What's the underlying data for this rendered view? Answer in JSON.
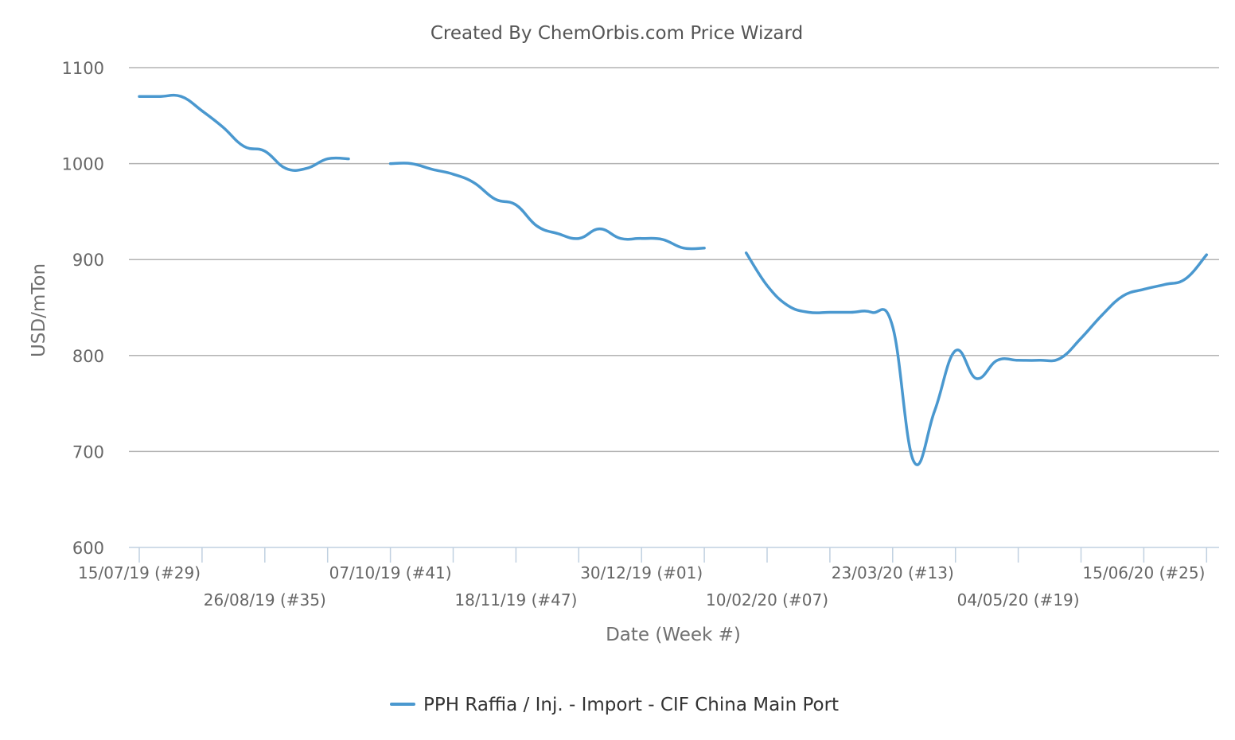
{
  "chart_data": {
    "type": "line",
    "title": "Created By ChemOrbis.com Price Wizard",
    "xlabel": "Date (Week #)",
    "ylabel": "USD/mTon",
    "ylim": [
      600,
      1100
    ],
    "yticks": [
      600,
      700,
      800,
      900,
      1000,
      1100
    ],
    "grid": true,
    "legend_position": "bottom-center",
    "x_start_week": "15/07/19 (#29)",
    "x_ticks_labeled": [
      {
        "week": 0,
        "label": "15/07/19 (#29)"
      },
      {
        "week": 6,
        "label": "26/08/19 (#35)"
      },
      {
        "week": 12,
        "label": "07/10/19 (#41)"
      },
      {
        "week": 18,
        "label": "18/11/19 (#47)"
      },
      {
        "week": 24,
        "label": "30/12/19 (#01)"
      },
      {
        "week": 30,
        "label": "10/02/20 (#07)"
      },
      {
        "week": 36,
        "label": "23/03/20 (#13)"
      },
      {
        "week": 42,
        "label": "04/05/20 (#19)"
      },
      {
        "week": 48,
        "label": "15/06/20 (#25)"
      }
    ],
    "x_tick_weeks": [
      0,
      3,
      6,
      9,
      12,
      15,
      18,
      21,
      24,
      27,
      30,
      33,
      36,
      39,
      42,
      45,
      48,
      51
    ],
    "series": [
      {
        "name": "PPH Raffia / Inj. - Import - CIF China Main Port",
        "color": "#4a98cf",
        "points": [
          {
            "week": 0,
            "value": 1070
          },
          {
            "week": 1,
            "value": 1070
          },
          {
            "week": 2,
            "value": 1070
          },
          {
            "week": 3,
            "value": 1055
          },
          {
            "week": 4,
            "value": 1038
          },
          {
            "week": 5,
            "value": 1018
          },
          {
            "week": 6,
            "value": 1013
          },
          {
            "week": 7,
            "value": 995
          },
          {
            "week": 8,
            "value": 995
          },
          {
            "week": 9,
            "value": 1005
          },
          {
            "week": 10,
            "value": 1005
          },
          {
            "week": 11,
            "value": null
          },
          {
            "week": 12,
            "value": 1000
          },
          {
            "week": 13,
            "value": 1000
          },
          {
            "week": 14,
            "value": 994
          },
          {
            "week": 15,
            "value": 989
          },
          {
            "week": 16,
            "value": 980
          },
          {
            "week": 17,
            "value": 963
          },
          {
            "week": 18,
            "value": 957
          },
          {
            "week": 19,
            "value": 935
          },
          {
            "week": 20,
            "value": 927
          },
          {
            "week": 21,
            "value": 922
          },
          {
            "week": 22,
            "value": 932
          },
          {
            "week": 23,
            "value": 922
          },
          {
            "week": 24,
            "value": 922
          },
          {
            "week": 25,
            "value": 921
          },
          {
            "week": 26,
            "value": 912
          },
          {
            "week": 27,
            "value": 912
          },
          {
            "week": 28,
            "value": null
          },
          {
            "week": 29,
            "value": 907
          },
          {
            "week": 30,
            "value": 873
          },
          {
            "week": 31,
            "value": 852
          },
          {
            "week": 32,
            "value": 845
          },
          {
            "week": 33,
            "value": 845
          },
          {
            "week": 34,
            "value": 845
          },
          {
            "week": 35,
            "value": 845
          },
          {
            "week": 36,
            "value": 830
          },
          {
            "week": 37,
            "value": 690
          },
          {
            "week": 38,
            "value": 742
          },
          {
            "week": 39,
            "value": 805
          },
          {
            "week": 40,
            "value": 776
          },
          {
            "week": 41,
            "value": 795
          },
          {
            "week": 42,
            "value": 795
          },
          {
            "week": 43,
            "value": 795
          },
          {
            "week": 44,
            "value": 797
          },
          {
            "week": 45,
            "value": 818
          },
          {
            "week": 46,
            "value": 842
          },
          {
            "week": 47,
            "value": 862
          },
          {
            "week": 48,
            "value": 869
          },
          {
            "week": 49,
            "value": 874
          },
          {
            "week": 50,
            "value": 880
          },
          {
            "week": 51,
            "value": 905
          }
        ]
      }
    ]
  }
}
